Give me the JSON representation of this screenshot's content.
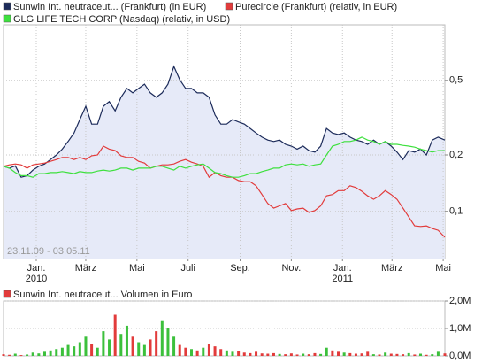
{
  "chart_data": [
    {
      "type": "line",
      "log": true,
      "grid": true,
      "range_label": "23.11.09 - 03.05.11",
      "xlim": [
        "2009-11-23",
        "2011-05-03"
      ],
      "xticks": [
        {
          "value": "2010-01-01",
          "label": "Jan.",
          "sublabel": "2010"
        },
        {
          "value": "2010-03-01",
          "label": "März"
        },
        {
          "value": "2010-05-01",
          "label": "Mai"
        },
        {
          "value": "2010-07-01",
          "label": "Juli"
        },
        {
          "value": "2010-09-01",
          "label": "Sep."
        },
        {
          "value": "2010-11-01",
          "label": "Nov."
        },
        {
          "value": "2011-01-01",
          "label": "Jan.",
          "sublabel": "2011"
        },
        {
          "value": "2011-03-01",
          "label": "März"
        },
        {
          "value": "2011-05-01",
          "label": "Mai"
        }
      ],
      "ylim": [
        0.056,
        0.99
      ],
      "yticks": [
        {
          "value": 0.1,
          "label": "0,1"
        },
        {
          "value": 0.2,
          "label": "0,2"
        },
        {
          "value": 0.5,
          "label": "0,5"
        }
      ],
      "x": [
        "2009-11-23",
        "2009-11-30",
        "2009-12-07",
        "2009-12-14",
        "2009-12-21",
        "2009-12-28",
        "2010-01-04",
        "2010-01-11",
        "2010-01-18",
        "2010-01-25",
        "2010-02-01",
        "2010-02-08",
        "2010-02-15",
        "2010-02-22",
        "2010-03-01",
        "2010-03-08",
        "2010-03-15",
        "2010-03-22",
        "2010-03-29",
        "2010-04-05",
        "2010-04-12",
        "2010-04-19",
        "2010-04-26",
        "2010-05-03",
        "2010-05-10",
        "2010-05-17",
        "2010-05-24",
        "2010-05-31",
        "2010-06-07",
        "2010-06-14",
        "2010-06-21",
        "2010-06-28",
        "2010-07-05",
        "2010-07-12",
        "2010-07-19",
        "2010-07-26",
        "2010-08-02",
        "2010-08-09",
        "2010-08-16",
        "2010-08-23",
        "2010-08-30",
        "2010-09-06",
        "2010-09-13",
        "2010-09-20",
        "2010-09-27",
        "2010-10-04",
        "2010-10-11",
        "2010-10-18",
        "2010-10-25",
        "2010-11-01",
        "2010-11-08",
        "2010-11-15",
        "2010-11-22",
        "2010-11-29",
        "2010-12-06",
        "2010-12-13",
        "2010-12-20",
        "2010-12-27",
        "2011-01-03",
        "2011-01-10",
        "2011-01-17",
        "2011-01-24",
        "2011-01-31",
        "2011-02-07",
        "2011-02-14",
        "2011-02-21",
        "2011-02-28",
        "2011-03-07",
        "2011-03-14",
        "2011-03-21",
        "2011-03-28",
        "2011-04-04",
        "2011-04-11",
        "2011-04-18",
        "2011-04-25",
        "2011-05-03"
      ],
      "series": [
        {
          "name": "Sunwin Int. neutraceut... (Frankfurt) (in EUR)",
          "color": "#1c2b5a",
          "fill": "#e6eaf8",
          "values": [
            0.174,
            0.17,
            0.175,
            0.152,
            0.155,
            0.166,
            0.174,
            0.179,
            0.189,
            0.2,
            0.215,
            0.236,
            0.262,
            0.309,
            0.364,
            0.292,
            0.292,
            0.364,
            0.385,
            0.344,
            0.406,
            0.453,
            0.429,
            0.453,
            0.477,
            0.429,
            0.406,
            0.429,
            0.477,
            0.594,
            0.505,
            0.453,
            0.453,
            0.429,
            0.429,
            0.406,
            0.327,
            0.292,
            0.292,
            0.309,
            0.3,
            0.292,
            0.277,
            0.262,
            0.249,
            0.24,
            0.236,
            0.24,
            0.228,
            0.223,
            0.215,
            0.223,
            0.211,
            0.207,
            0.223,
            0.277,
            0.262,
            0.257,
            0.262,
            0.249,
            0.24,
            0.236,
            0.228,
            0.24,
            0.228,
            0.236,
            0.223,
            0.207,
            0.189,
            0.211,
            0.207,
            0.215,
            0.2,
            0.24,
            0.249,
            0.24
          ]
        },
        {
          "name": "Purecircle (Frankfurt) (relativ, in EUR)",
          "color": "#e23b3b",
          "values": [
            0.174,
            0.177,
            0.179,
            0.177,
            0.17,
            0.177,
            0.179,
            0.181,
            0.185,
            0.189,
            0.194,
            0.194,
            0.189,
            0.194,
            0.189,
            0.198,
            0.2,
            0.223,
            0.215,
            0.211,
            0.198,
            0.194,
            0.194,
            0.185,
            0.181,
            0.17,
            0.174,
            0.177,
            0.177,
            0.179,
            0.185,
            0.189,
            0.183,
            0.179,
            0.174,
            0.152,
            0.161,
            0.155,
            0.152,
            0.152,
            0.146,
            0.144,
            0.144,
            0.137,
            0.123,
            0.11,
            0.104,
            0.107,
            0.11,
            0.101,
            0.103,
            0.104,
            0.0987,
            0.101,
            0.107,
            0.121,
            0.123,
            0.129,
            0.129,
            0.137,
            0.134,
            0.128,
            0.121,
            0.116,
            0.121,
            0.129,
            0.123,
            0.116,
            0.104,
            0.0933,
            0.0837,
            0.083,
            0.0837,
            0.081,
            0.0792,
            0.0727
          ]
        },
        {
          "name": "GLG LIFE TECH CORP (Nasdaq) (relativ, in USD)",
          "color": "#3ee03e",
          "values": [
            0.174,
            0.17,
            0.161,
            0.155,
            0.155,
            0.152,
            0.159,
            0.159,
            0.161,
            0.161,
            0.163,
            0.161,
            0.159,
            0.163,
            0.161,
            0.161,
            0.164,
            0.166,
            0.164,
            0.166,
            0.17,
            0.17,
            0.166,
            0.17,
            0.17,
            0.17,
            0.174,
            0.174,
            0.17,
            0.166,
            0.174,
            0.17,
            0.174,
            0.177,
            0.179,
            0.17,
            0.161,
            0.159,
            0.155,
            0.152,
            0.152,
            0.155,
            0.159,
            0.159,
            0.163,
            0.166,
            0.17,
            0.17,
            0.177,
            0.179,
            0.177,
            0.179,
            0.174,
            0.177,
            0.179,
            0.2,
            0.223,
            0.228,
            0.236,
            0.236,
            0.24,
            0.249,
            0.24,
            0.236,
            0.228,
            0.236,
            0.228,
            0.228,
            0.225,
            0.223,
            0.22,
            0.215,
            0.211,
            0.207,
            0.211,
            0.211
          ]
        }
      ]
    },
    {
      "type": "bar",
      "grid": true,
      "xlim": [
        "2009-11-23",
        "2011-05-03"
      ],
      "ylim": [
        0,
        2000000
      ],
      "yticks": [
        {
          "value": 0,
          "label": "0,0M"
        },
        {
          "value": 1000000,
          "label": "1,0M"
        },
        {
          "value": 2000000,
          "label": "2,0M"
        }
      ],
      "x": [
        "2009-11-23",
        "2009-11-30",
        "2009-12-07",
        "2009-12-14",
        "2009-12-21",
        "2009-12-28",
        "2010-01-04",
        "2010-01-11",
        "2010-01-18",
        "2010-01-25",
        "2010-02-01",
        "2010-02-08",
        "2010-02-15",
        "2010-02-22",
        "2010-03-01",
        "2010-03-08",
        "2010-03-15",
        "2010-03-22",
        "2010-03-29",
        "2010-04-05",
        "2010-04-12",
        "2010-04-19",
        "2010-04-26",
        "2010-05-03",
        "2010-05-10",
        "2010-05-17",
        "2010-05-24",
        "2010-05-31",
        "2010-06-07",
        "2010-06-14",
        "2010-06-21",
        "2010-06-28",
        "2010-07-05",
        "2010-07-12",
        "2010-07-19",
        "2010-07-26",
        "2010-08-02",
        "2010-08-09",
        "2010-08-16",
        "2010-08-23",
        "2010-08-30",
        "2010-09-06",
        "2010-09-13",
        "2010-09-20",
        "2010-09-27",
        "2010-10-04",
        "2010-10-11",
        "2010-10-18",
        "2010-10-25",
        "2010-11-01",
        "2010-11-08",
        "2010-11-15",
        "2010-11-22",
        "2010-11-29",
        "2010-12-06",
        "2010-12-13",
        "2010-12-20",
        "2010-12-27",
        "2011-01-03",
        "2011-01-10",
        "2011-01-17",
        "2011-01-24",
        "2011-01-31",
        "2011-02-07",
        "2011-02-14",
        "2011-02-21",
        "2011-02-28",
        "2011-03-07",
        "2011-03-14",
        "2011-03-21",
        "2011-03-28",
        "2011-04-04",
        "2011-04-11",
        "2011-04-18",
        "2011-04-25",
        "2011-05-03"
      ],
      "series": [
        {
          "name": "Sunwin Int. neutraceut... Volumen in Euro",
          "color": "#e23b3b",
          "up_color": "#3cc03c",
          "values": [
            60000,
            40000,
            80000,
            30000,
            50000,
            120000,
            90000,
            150000,
            200000,
            250000,
            300000,
            400000,
            350000,
            500000,
            700000,
            450000,
            300000,
            900000,
            600000,
            1500000,
            800000,
            1100000,
            700000,
            500000,
            400000,
            600000,
            900000,
            1300000,
            1000000,
            700000,
            400000,
            300000,
            250000,
            200000,
            300000,
            450000,
            350000,
            250000,
            200000,
            150000,
            180000,
            120000,
            100000,
            150000,
            90000,
            80000,
            100000,
            70000,
            60000,
            90000,
            50000,
            80000,
            60000,
            100000,
            70000,
            300000,
            200000,
            150000,
            120000,
            100000,
            80000,
            90000,
            150000,
            60000,
            50000,
            120000,
            80000,
            70000,
            60000,
            100000,
            50000,
            80000,
            40000,
            60000,
            150000,
            90000
          ]
        }
      ]
    }
  ]
}
